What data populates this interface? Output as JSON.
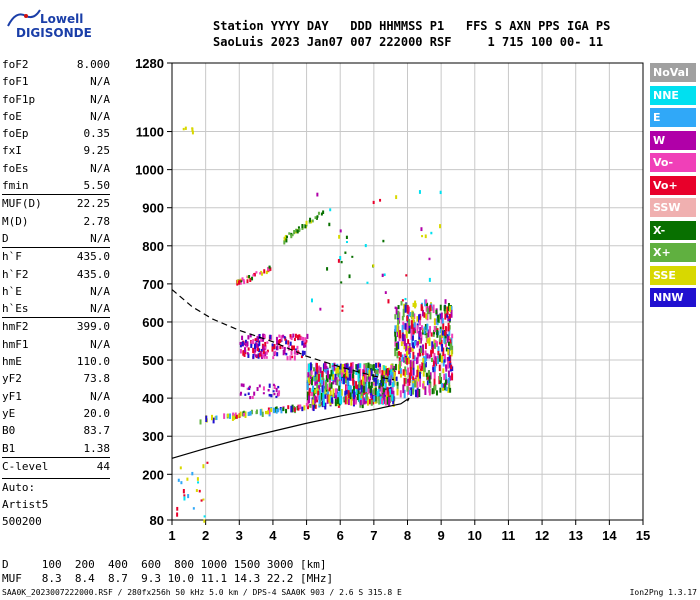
{
  "logo": {
    "line1": "Lowell",
    "line2": "DIGISONDE"
  },
  "header": {
    "line1": "Station YYYY DAY   DDD HHMMSS P1   FFS S AXN PPS IGA PS",
    "line2": "SaoLuis 2023 Jan07 007 222000 RSF     1 715 100 00- 11"
  },
  "params": [
    {
      "k": "foF2",
      "v": "8.000"
    },
    {
      "k": "foF1",
      "v": "N/A"
    },
    {
      "k": "foF1p",
      "v": "N/A"
    },
    {
      "k": "foE",
      "v": "N/A"
    },
    {
      "k": "foEp",
      "v": "0.35"
    },
    {
      "k": "fxI",
      "v": "9.25"
    },
    {
      "k": "foEs",
      "v": "N/A"
    },
    {
      "k": "fmin",
      "v": "5.50"
    },
    {
      "k": "MUF(D)",
      "v": "22.25",
      "sep": true
    },
    {
      "k": "M(D)",
      "v": "2.78"
    },
    {
      "k": "D",
      "v": "N/A"
    },
    {
      "k": "h`F",
      "v": "435.0",
      "sep": true
    },
    {
      "k": "h`F2",
      "v": "435.0"
    },
    {
      "k": "h`E",
      "v": "N/A"
    },
    {
      "k": "h`Es",
      "v": "N/A"
    },
    {
      "k": "hmF2",
      "v": "399.0",
      "sep": true
    },
    {
      "k": "hmF1",
      "v": "N/A"
    },
    {
      "k": "hmE",
      "v": "110.0"
    },
    {
      "k": "yF2",
      "v": "73.8"
    },
    {
      "k": "yF1",
      "v": "N/A"
    },
    {
      "k": "yE",
      "v": "20.0"
    },
    {
      "k": "B0",
      "v": "83.7"
    },
    {
      "k": "B1",
      "v": "1.38"
    },
    {
      "k": "C-level",
      "v": "44",
      "sep": true
    }
  ],
  "auto": {
    "l1": "Auto:",
    "l2": "Artist5",
    "l3": "500200"
  },
  "legend": [
    {
      "label": "NoVal",
      "color": "#a0a0a0"
    },
    {
      "label": "NNE",
      "color": "#00e0f0"
    },
    {
      "label": "E",
      "color": "#30a8f8"
    },
    {
      "label": "W",
      "color": "#b000a8"
    },
    {
      "label": "Vo-",
      "color": "#f040b8"
    },
    {
      "label": "Vo+",
      "color": "#e8002a"
    },
    {
      "label": "SSW",
      "color": "#f0b0b0"
    },
    {
      "label": "X-",
      "color": "#087000"
    },
    {
      "label": "X+",
      "color": "#60b040"
    },
    {
      "label": "SSE",
      "color": "#d8d800"
    },
    {
      "label": "NNW",
      "color": "#2010d0"
    }
  ],
  "muf_table": {
    "d_row": "D     100  200  400  600  800 1000 1500 3000 [km]",
    "muf_row": "MUF   8.3  8.4  8.7  9.3 10.0 11.1 14.3 22.2 [MHz]"
  },
  "footer": {
    "left": "SAA0K_2023007222000.RSF / 280fx256h 50 kHz 5.0 km / DPS-4 SAA0K 903 / 2.6 S 315.8 E",
    "right": "Ion2Png 1.3.17"
  },
  "chart_data": {
    "type": "scatter",
    "xlim": [
      1,
      15
    ],
    "ylim": [
      80,
      1280
    ],
    "xticks": [
      1,
      2,
      3,
      4,
      5,
      6,
      7,
      8,
      9,
      10,
      11,
      12,
      13,
      14,
      15
    ],
    "yticks": [
      80,
      200,
      300,
      400,
      500,
      600,
      700,
      800,
      900,
      1000,
      1100,
      1280
    ],
    "grid": true,
    "colors": {
      "NNE": "#00e0f0",
      "E": "#30a8f8",
      "W": "#b000a8",
      "Vo-": "#f040b8",
      "Vo+": "#e8002a",
      "X-": "#087000",
      "X+": "#60b040",
      "SSE": "#d8d800",
      "NNW": "#2010d0"
    },
    "clusters": [
      {
        "name": "F2-low-trace",
        "x0": 1.8,
        "x1": 6.0,
        "y0": 348,
        "y1": 395,
        "n": 90,
        "w": 0.02,
        "h": 6,
        "palette": [
          "NNW",
          "Vo+",
          "Vo-",
          "E",
          "X-",
          "SSE",
          "X+"
        ]
      },
      {
        "name": "F2-main-blob",
        "x0": 5.0,
        "x1": 7.6,
        "y0": 395,
        "y1": 495,
        "n": 520,
        "w": 0.04,
        "h": 8,
        "palette": [
          "NNW",
          "Vo-",
          "Vo+",
          "E",
          "X-",
          "X+",
          "SSE",
          "W",
          "NNE"
        ]
      },
      {
        "name": "F2-upper-band",
        "x0": 7.6,
        "x1": 9.3,
        "y0": 420,
        "y1": 660,
        "n": 420,
        "w": 0.035,
        "h": 8,
        "palette": [
          "Vo+",
          "Vo-",
          "X-",
          "X+",
          "SSE",
          "NNW",
          "E",
          "W"
        ]
      },
      {
        "name": "spread-band-540",
        "x0": 3.0,
        "x1": 5.0,
        "y0": 510,
        "y1": 570,
        "n": 150,
        "w": 0.03,
        "h": 5,
        "palette": [
          "W",
          "Vo-",
          "Vo+",
          "NNW"
        ]
      },
      {
        "name": "mid-band-420",
        "x0": 3.0,
        "x1": 4.2,
        "y0": 405,
        "y1": 440,
        "n": 30,
        "w": 0.03,
        "h": 4,
        "palette": [
          "W",
          "Vo-",
          "NNW"
        ]
      },
      {
        "name": "multi-hop-730",
        "x0": 2.9,
        "x1": 3.9,
        "y0": 705,
        "y1": 745,
        "n": 35,
        "w": 0.03,
        "h": 4,
        "palette": [
          "SSE",
          "Vo+",
          "X-",
          "Vo-"
        ]
      },
      {
        "name": "multi-hop-860",
        "x0": 4.3,
        "x1": 5.5,
        "y0": 820,
        "y1": 895,
        "n": 40,
        "w": 0.03,
        "h": 4,
        "palette": [
          "SSE",
          "X+",
          "X-"
        ]
      },
      {
        "name": "scatter-upper",
        "x0": 5.0,
        "x1": 9.0,
        "y0": 620,
        "y1": 950,
        "n": 45,
        "w": 0.02,
        "h": 4,
        "palette": [
          "X-",
          "Vo+",
          "W",
          "NNE",
          "SSE"
        ]
      },
      {
        "name": "low-points",
        "x0": 1.1,
        "x1": 2.1,
        "y0": 80,
        "y1": 240,
        "n": 22,
        "w": 0.02,
        "h": 4,
        "palette": [
          "SSE",
          "NNE",
          "E",
          "Vo+"
        ]
      },
      {
        "name": "high-points",
        "x0": 1.3,
        "x1": 1.6,
        "y0": 1100,
        "y1": 1125,
        "n": 5,
        "w": 0.02,
        "h": 4,
        "palette": [
          "SSE"
        ]
      }
    ],
    "profile_solid": [
      [
        1,
        242
      ],
      [
        2,
        268
      ],
      [
        3,
        292
      ],
      [
        4,
        313
      ],
      [
        5,
        334
      ],
      [
        6,
        353
      ],
      [
        7,
        370
      ],
      [
        7.8,
        385
      ],
      [
        8.05,
        400
      ],
      [
        8.0,
        392
      ]
    ],
    "profile_dashed": [
      [
        1,
        685
      ],
      [
        1.6,
        640
      ],
      [
        2.2,
        608
      ],
      [
        3,
        578
      ],
      [
        4,
        548
      ],
      [
        5,
        510
      ],
      [
        6,
        482
      ],
      [
        7,
        458
      ],
      [
        7.6,
        448
      ]
    ]
  }
}
